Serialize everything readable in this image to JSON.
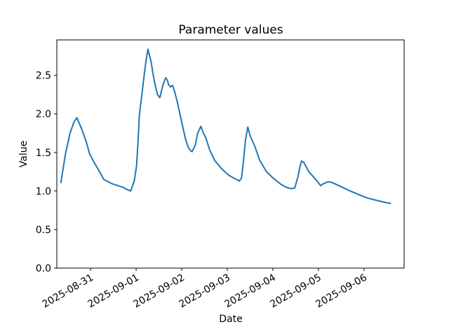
{
  "chart_data": {
    "type": "line",
    "title": "Parameter values",
    "xlabel": "Date",
    "ylabel": "Value",
    "grid": false,
    "x_axis": {
      "unit": "days since 2025-08-31 00:00",
      "tick_positions_days": [
        0,
        1,
        2,
        3,
        4,
        5,
        6
      ],
      "tick_labels": [
        "2025-08-31",
        "2025-09-01",
        "2025-09-02",
        "2025-09-03",
        "2025-09-04",
        "2025-09-05",
        "2025-09-06"
      ],
      "label_rotation_deg": 30,
      "xlim_days": [
        -0.74,
        6.88
      ]
    },
    "y_axis": {
      "tick_values": [
        0.0,
        0.5,
        1.0,
        1.5,
        2.0,
        2.5
      ],
      "tick_labels": [
        "0.0",
        "0.5",
        "1.0",
        "1.5",
        "2.0",
        "2.5"
      ],
      "ylim": [
        0,
        2.96
      ]
    },
    "series": [
      {
        "name": "parameter-value-series",
        "color": "#1f77b4",
        "line_width": 2,
        "points": [
          [
            -0.65,
            1.11
          ],
          [
            -0.55,
            1.48
          ],
          [
            -0.45,
            1.75
          ],
          [
            -0.36,
            1.9
          ],
          [
            -0.3,
            1.95
          ],
          [
            -0.19,
            1.8
          ],
          [
            -0.09,
            1.63
          ],
          [
            -0.02,
            1.48
          ],
          [
            0.09,
            1.36
          ],
          [
            0.19,
            1.26
          ],
          [
            0.29,
            1.15
          ],
          [
            0.45,
            1.1
          ],
          [
            0.6,
            1.07
          ],
          [
            0.71,
            1.05
          ],
          [
            0.8,
            1.02
          ],
          [
            0.88,
            1.0
          ],
          [
            0.96,
            1.13
          ],
          [
            1.01,
            1.33
          ],
          [
            1.04,
            1.62
          ],
          [
            1.07,
            1.98
          ],
          [
            1.12,
            2.22
          ],
          [
            1.18,
            2.52
          ],
          [
            1.22,
            2.7
          ],
          [
            1.26,
            2.84
          ],
          [
            1.33,
            2.67
          ],
          [
            1.37,
            2.52
          ],
          [
            1.42,
            2.37
          ],
          [
            1.47,
            2.25
          ],
          [
            1.52,
            2.21
          ],
          [
            1.54,
            2.26
          ],
          [
            1.59,
            2.38
          ],
          [
            1.65,
            2.47
          ],
          [
            1.69,
            2.43
          ],
          [
            1.71,
            2.38
          ],
          [
            1.75,
            2.35
          ],
          [
            1.8,
            2.37
          ],
          [
            1.85,
            2.28
          ],
          [
            1.91,
            2.14
          ],
          [
            2.02,
            1.84
          ],
          [
            2.09,
            1.66
          ],
          [
            2.15,
            1.56
          ],
          [
            2.2,
            1.52
          ],
          [
            2.23,
            1.51
          ],
          [
            2.3,
            1.6
          ],
          [
            2.35,
            1.75
          ],
          [
            2.42,
            1.84
          ],
          [
            2.47,
            1.76
          ],
          [
            2.53,
            1.69
          ],
          [
            2.61,
            1.54
          ],
          [
            2.73,
            1.39
          ],
          [
            2.89,
            1.28
          ],
          [
            3.04,
            1.2
          ],
          [
            3.2,
            1.15
          ],
          [
            3.26,
            1.13
          ],
          [
            3.31,
            1.16
          ],
          [
            3.35,
            1.36
          ],
          [
            3.4,
            1.66
          ],
          [
            3.45,
            1.83
          ],
          [
            3.5,
            1.72
          ],
          [
            3.61,
            1.57
          ],
          [
            3.71,
            1.4
          ],
          [
            3.86,
            1.25
          ],
          [
            4.02,
            1.16
          ],
          [
            4.17,
            1.09
          ],
          [
            4.29,
            1.05
          ],
          [
            4.4,
            1.03
          ],
          [
            4.48,
            1.04
          ],
          [
            4.55,
            1.18
          ],
          [
            4.59,
            1.3
          ],
          [
            4.63,
            1.39
          ],
          [
            4.68,
            1.37
          ],
          [
            4.79,
            1.25
          ],
          [
            4.94,
            1.15
          ],
          [
            5.05,
            1.07
          ],
          [
            5.12,
            1.1
          ],
          [
            5.22,
            1.12
          ],
          [
            5.3,
            1.11
          ],
          [
            5.45,
            1.07
          ],
          [
            5.66,
            1.01
          ],
          [
            5.86,
            0.96
          ],
          [
            6.07,
            0.91
          ],
          [
            6.27,
            0.88
          ],
          [
            6.48,
            0.85
          ],
          [
            6.58,
            0.84
          ]
        ]
      }
    ],
    "legend": "none",
    "line_color": "#1f77b4",
    "background_color": "#ffffff"
  }
}
